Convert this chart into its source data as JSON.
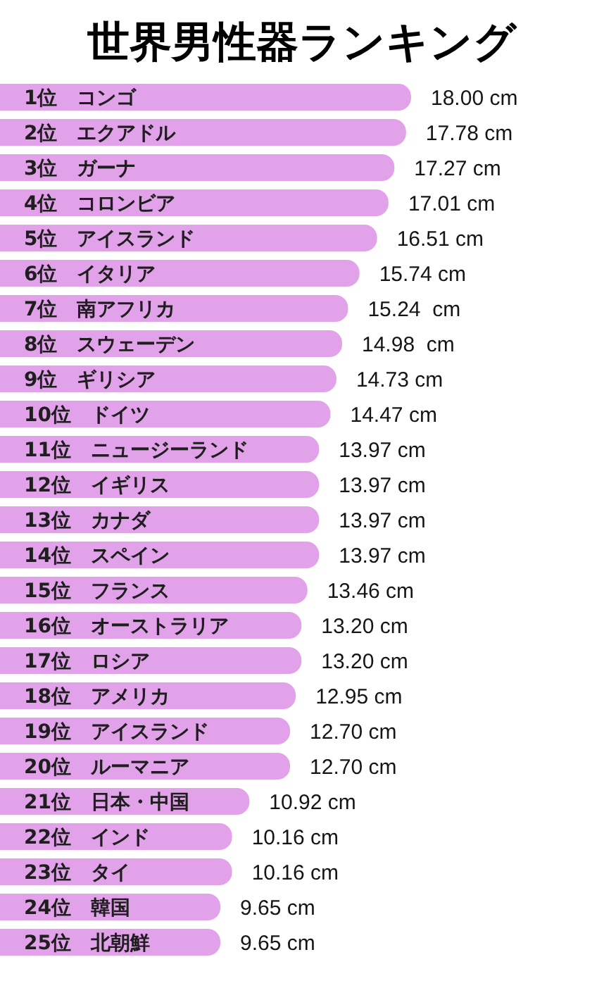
{
  "chart_data": {
    "type": "bar",
    "orientation": "horizontal",
    "title": "世界男性器ランキング",
    "categories": [
      "1位　コンゴ",
      "2位　エクアドル",
      "3位　ガーナ",
      "4位　コロンビア",
      "5位　アイスランド",
      "6位　イタリア",
      "7位　南アフリカ",
      "8位　スウェーデン",
      "9位　ギリシア",
      "10位　ドイツ",
      "11位　ニュージーランド",
      "12位　イギリス",
      "13位　カナダ",
      "14位　スペイン",
      "15位　フランス",
      "16位　オーストラリア",
      "17位　ロシア",
      "18位　アメリカ",
      "19位　アイスランド",
      "20位　ルーマニア",
      "21位　日本・中国",
      "22位　インド",
      "23位　タイ",
      "24位　韓国",
      "25位　北朝鮮"
    ],
    "values": [
      18.0,
      17.78,
      17.27,
      17.01,
      16.51,
      15.74,
      15.24,
      14.98,
      14.73,
      14.47,
      13.97,
      13.97,
      13.97,
      13.97,
      13.46,
      13.2,
      13.2,
      12.95,
      12.7,
      12.7,
      10.92,
      10.16,
      10.16,
      9.65,
      9.65
    ],
    "value_labels": [
      "18.00 cm",
      "17.78 cm",
      "17.27 cm",
      "17.01 cm",
      "16.51 cm",
      "15.74 cm",
      "15.24  cm",
      "14.98  cm",
      "14.73 cm",
      "14.47 cm",
      "13.97 cm",
      "13.97 cm",
      "13.97 cm",
      "13.97 cm",
      "13.46 cm",
      "13.20 cm",
      "13.20 cm",
      "12.95 cm",
      "12.70 cm",
      "12.70 cm",
      "10.92 cm",
      "10.16 cm",
      "10.16 cm",
      "9.65 cm",
      "9.65 cm"
    ],
    "color": "#e2a2ea"
  }
}
